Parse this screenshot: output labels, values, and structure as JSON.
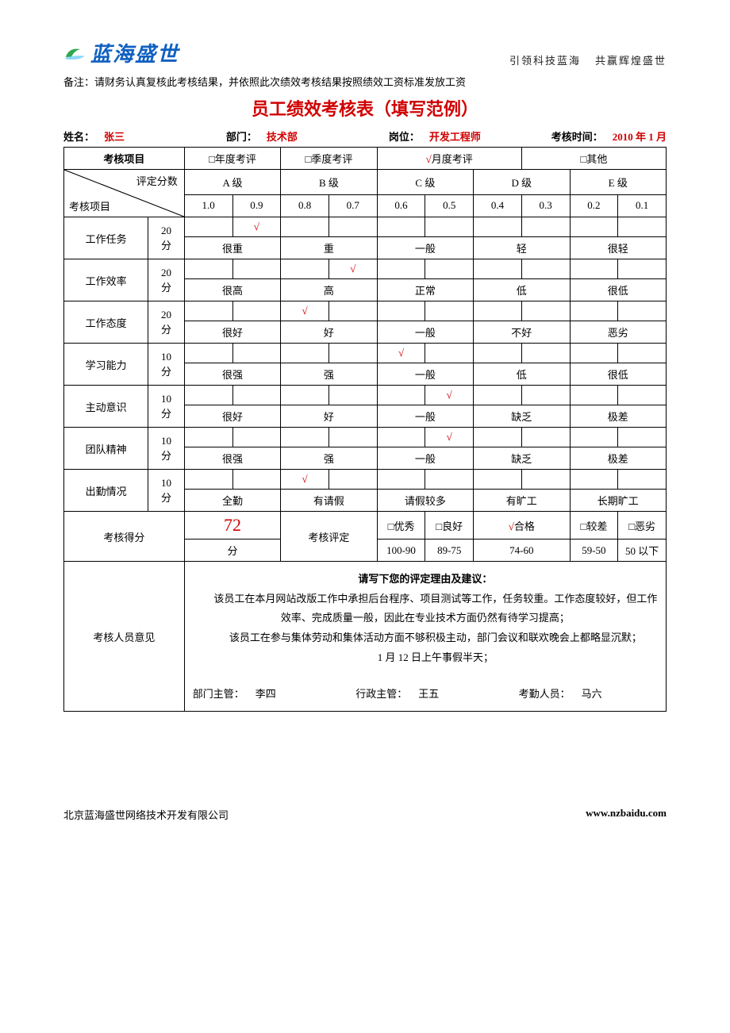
{
  "header": {
    "logo_text": "蓝海盛世",
    "slogan_a": "引领科技蓝海",
    "slogan_b": "共赢辉煌盛世"
  },
  "note": "备注：请财务认真复核此考核结果，并依照此次绩效考核结果按照绩效工资标准发放工资",
  "title": "员工绩效考核表（填写范例）",
  "info": {
    "name_label": "姓名：",
    "name_value": "张三",
    "dept_label": "部门：",
    "dept_value": "技术部",
    "post_label": "岗位：",
    "post_value": "开发工程师",
    "time_label": "考核时间：",
    "time_value": "2010 年 1 月"
  },
  "assess_type": {
    "label": "考核项目",
    "options": [
      "年度考评",
      "季度考评",
      "月度考评",
      "其他"
    ],
    "selected_index": 2,
    "box_glyph": "□",
    "check_glyph": "√"
  },
  "grade_header": {
    "diag_top": "评定分数",
    "diag_bottom": "考核项目",
    "levels": [
      "A 级",
      "B 级",
      "C 级",
      "D 级",
      "E 级"
    ],
    "scores": [
      "1.0",
      "0.9",
      "0.8",
      "0.7",
      "0.6",
      "0.5",
      "0.4",
      "0.3",
      "0.2",
      "0.1"
    ]
  },
  "criteria": [
    {
      "name": "工作任务",
      "points": "20",
      "descs": [
        "很重",
        "重",
        "一般",
        "轻",
        "很轻"
      ],
      "checked_col": 1
    },
    {
      "name": "工作效率",
      "points": "20",
      "descs": [
        "很高",
        "高",
        "正常",
        "低",
        "很低"
      ],
      "checked_col": 3
    },
    {
      "name": "工作态度",
      "points": "20",
      "descs": [
        "很好",
        "好",
        "一般",
        "不好",
        "恶劣"
      ],
      "checked_col": 2
    },
    {
      "name": "学习能力",
      "points": "10",
      "descs": [
        "很强",
        "强",
        "一般",
        "低",
        "很低"
      ],
      "checked_col": 4
    },
    {
      "name": "主动意识",
      "points": "10",
      "descs": [
        "很好",
        "好",
        "一般",
        "缺乏",
        "极差"
      ],
      "checked_col": 5
    },
    {
      "name": "团队精神",
      "points": "10",
      "descs": [
        "很强",
        "强",
        "一般",
        "缺乏",
        "极差"
      ],
      "checked_col": 5
    },
    {
      "name": "出勤情况",
      "points": "10",
      "descs": [
        "全勤",
        "有请假",
        "请假较多",
        "有旷工",
        "长期旷工"
      ],
      "checked_col": 2
    }
  ],
  "points_unit": "分",
  "result": {
    "score_label": "考核得分",
    "score_value": "72",
    "score_unit": "分",
    "rating_label": "考核评定",
    "rating_options": [
      "优秀",
      "良好",
      "合格",
      "较差",
      "恶劣"
    ],
    "rating_ranges": [
      "100-90",
      "89-75",
      "74-60",
      "59-50",
      "50 以下"
    ],
    "rating_selected_index": 2
  },
  "opinion": {
    "label": "考核人员意见",
    "heading": "请写下您的评定理由及建议：",
    "lines": [
      "该员工在本月网站改版工作中承担后台程序、项目测试等工作，任务较重。工作态度较好，但工作效率、完成质量一般，因此在专业技术方面仍然有待学习提高；",
      "该员工在参与集体劳动和集体活动方面不够积极主动，部门会议和联欢晚会上都略显沉默；",
      "1 月 12 日上午事假半天；"
    ],
    "sign": {
      "dept_label": "部门主管：",
      "dept_name": "李四",
      "admin_label": "行政主管：",
      "admin_name": "王五",
      "attend_label": "考勤人员：",
      "attend_name": "马六"
    }
  },
  "footer": {
    "company": "北京蓝海盛世网络技术开发有限公司",
    "url": "www.nzbaidu.com"
  },
  "colors": {
    "accent_red": "#d00000",
    "logo_blue": "#1060c0",
    "border": "#000000"
  }
}
